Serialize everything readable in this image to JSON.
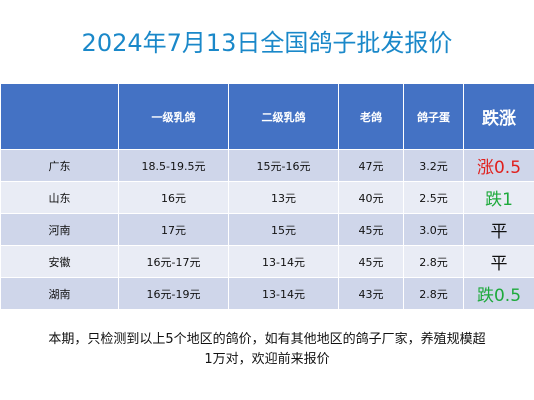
{
  "title": "2024年7月13日全国鸽子批发报价",
  "headers": [
    "",
    "一级乳鸽",
    "二级乳鸽",
    "老鸽",
    "鸽子蛋",
    "跌涨"
  ],
  "rows": [
    {
      "region": "广东",
      "grade1": "18.5-19.5元",
      "grade2": "15元-16元",
      "old": "47元",
      "egg": "3.2元",
      "change": "涨0.5",
      "change_type": "up"
    },
    {
      "region": "山东",
      "grade1": "16元",
      "grade2": "13元",
      "old": "40元",
      "egg": "2.5元",
      "change": "跌1",
      "change_type": "down"
    },
    {
      "region": "河南",
      "grade1": "17元",
      "grade2": "15元",
      "old": "45元",
      "egg": "3.0元",
      "change": "平",
      "change_type": "flat"
    },
    {
      "region": "安徽",
      "grade1": "16元-17元",
      "grade2": "13-14元",
      "old": "45元",
      "egg": "2.8元",
      "change": "平",
      "change_type": "flat"
    },
    {
      "region": "湖南",
      "grade1": "16元-19元",
      "grade2": "13-14元",
      "old": "43元",
      "egg": "2.8元",
      "change": "跌0.5",
      "change_type": "down"
    }
  ],
  "note_line1": "本期，只检测到以上5个地区的鸽价，如有其他地区的鸽子厂家，养殖规模超",
  "note_line2": "1万对，欢迎前来报价",
  "colors": {
    "title": "#1a88c9",
    "header_bg": "#4472c4",
    "row_dark": "#cfd6ea",
    "row_light": "#e9ecf5",
    "up": "#e0201d",
    "down": "#1eaa3c"
  }
}
